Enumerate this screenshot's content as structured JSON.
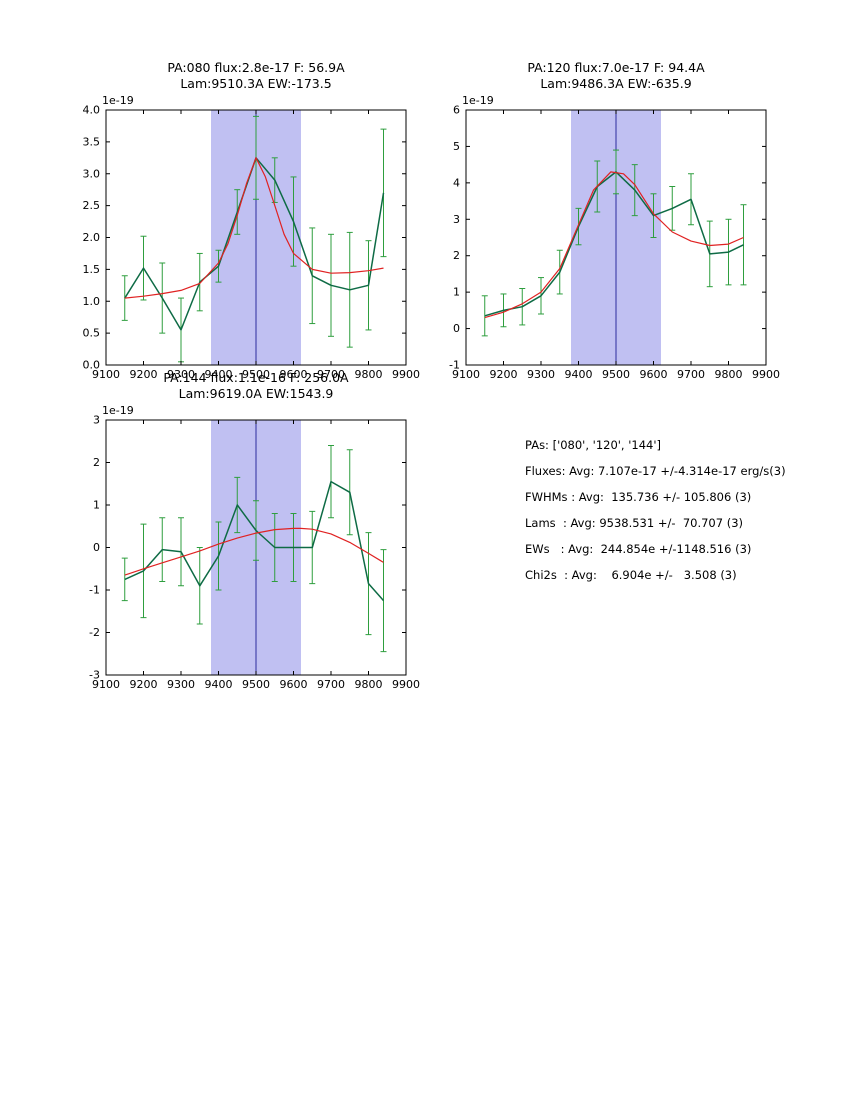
{
  "page": {
    "background": "#ffffff"
  },
  "stats_panel": {
    "lines": [
      "PAs: ['080', '120', '144']",
      "Fluxes: Avg: 7.107e-17 +/-4.314e-17 erg/s(3)",
      "FWHMs : Avg:  135.736 +/- 105.806 (3)",
      "Lams  : Avg: 9538.531 +/-  70.707 (3)",
      "EWs   : Avg:  244.854e +/-1148.516 (3)",
      "Chi2s  : Avg:    6.904e +/-   3.508 (3)"
    ]
  },
  "colors": {
    "data_line": "#0e6b45",
    "error_bar": "#2e9e3e",
    "fit_line": "#e02222",
    "band": "#c0c0f2",
    "vline": "#2b2b9e",
    "axes": "#000000"
  },
  "chart_data": [
    {
      "type": "line",
      "title_line1": "PA:080 flux:2.8e-17 F: 56.9A",
      "title_line2": "Lam:9510.3A EW:-173.5",
      "offset_label": "1e-19",
      "xlim": [
        9100,
        9900
      ],
      "ylim": [
        0.0,
        4.0
      ],
      "xticks": [
        9100,
        9200,
        9300,
        9400,
        9500,
        9600,
        9700,
        9800,
        9900
      ],
      "xtick_labels": [
        "9100",
        "9200",
        "9300",
        "9400",
        "9500",
        "9600",
        "9700",
        "9800",
        "9900"
      ],
      "yticks": [
        0.0,
        0.5,
        1.0,
        1.5,
        2.0,
        2.5,
        3.0,
        3.5,
        4.0
      ],
      "ytick_labels": [
        "0.0",
        "0.5",
        "1.0",
        "1.5",
        "2.0",
        "2.5",
        "3.0",
        "3.5",
        "4.0"
      ],
      "band": {
        "x0": 9380,
        "x1": 9620,
        "color": "#c0c0f2"
      },
      "vline": {
        "x": 9500,
        "color": "#2b2b9e"
      },
      "series": [
        {
          "name": "spectrum-data",
          "color": "#0e6b45",
          "err_color": "#2e9e3e",
          "x": [
            9150,
            9200,
            9250,
            9300,
            9350,
            9400,
            9450,
            9500,
            9550,
            9600,
            9650,
            9700,
            9750,
            9800,
            9840
          ],
          "y": [
            1.05,
            1.52,
            1.05,
            0.55,
            1.3,
            1.55,
            2.4,
            3.25,
            2.9,
            2.25,
            1.4,
            1.25,
            1.18,
            1.25,
            2.7
          ],
          "yerr": [
            0.35,
            0.5,
            0.55,
            0.5,
            0.45,
            0.25,
            0.35,
            0.65,
            0.35,
            0.7,
            0.75,
            0.8,
            0.9,
            0.7,
            1.0
          ]
        },
        {
          "name": "gaussian-fit",
          "color": "#e02222",
          "x": [
            9150,
            9200,
            9250,
            9300,
            9350,
            9400,
            9425,
            9450,
            9475,
            9500,
            9525,
            9550,
            9575,
            9600,
            9650,
            9700,
            9750,
            9800,
            9840
          ],
          "y": [
            1.05,
            1.08,
            1.12,
            1.17,
            1.28,
            1.6,
            1.9,
            2.35,
            2.85,
            3.25,
            2.95,
            2.5,
            2.05,
            1.75,
            1.5,
            1.44,
            1.45,
            1.48,
            1.52
          ]
        }
      ]
    },
    {
      "type": "line",
      "title_line1": "PA:120 flux:7.0e-17 F: 94.4A",
      "title_line2": "Lam:9486.3A EW:-635.9",
      "offset_label": "1e-19",
      "xlim": [
        9100,
        9900
      ],
      "ylim": [
        -1,
        6
      ],
      "xticks": [
        9100,
        9200,
        9300,
        9400,
        9500,
        9600,
        9700,
        9800,
        9900
      ],
      "xtick_labels": [
        "9100",
        "9200",
        "9300",
        "9400",
        "9500",
        "9600",
        "9700",
        "9800",
        "9900"
      ],
      "yticks": [
        -1,
        0,
        1,
        2,
        3,
        4,
        5,
        6
      ],
      "ytick_labels": [
        "-1",
        "0",
        "1",
        "2",
        "3",
        "4",
        "5",
        "6"
      ],
      "band": {
        "x0": 9380,
        "x1": 9620,
        "color": "#c0c0f2"
      },
      "vline": {
        "x": 9500,
        "color": "#2b2b9e"
      },
      "series": [
        {
          "name": "spectrum-data",
          "color": "#0e6b45",
          "err_color": "#2e9e3e",
          "x": [
            9150,
            9200,
            9250,
            9300,
            9350,
            9400,
            9450,
            9500,
            9550,
            9600,
            9650,
            9700,
            9750,
            9800,
            9840
          ],
          "y": [
            0.35,
            0.5,
            0.6,
            0.9,
            1.55,
            2.8,
            3.9,
            4.3,
            3.8,
            3.1,
            3.3,
            3.55,
            2.05,
            2.1,
            2.3
          ],
          "yerr": [
            0.55,
            0.45,
            0.5,
            0.5,
            0.6,
            0.5,
            0.7,
            0.6,
            0.7,
            0.6,
            0.6,
            0.7,
            0.9,
            0.9,
            1.1
          ]
        },
        {
          "name": "gaussian-fit",
          "color": "#e02222",
          "x": [
            9150,
            9200,
            9250,
            9300,
            9350,
            9400,
            9440,
            9486,
            9520,
            9550,
            9600,
            9650,
            9700,
            9750,
            9800,
            9840
          ],
          "y": [
            0.3,
            0.45,
            0.68,
            1.0,
            1.65,
            2.85,
            3.8,
            4.3,
            4.25,
            3.95,
            3.15,
            2.65,
            2.4,
            2.28,
            2.32,
            2.5
          ]
        }
      ]
    },
    {
      "type": "line",
      "title_line1": "PA:144 flux:1.1e-16 F: 256.0A",
      "title_line2": "Lam:9619.0A EW:1543.9",
      "offset_label": "1e-19",
      "xlim": [
        9100,
        9900
      ],
      "ylim": [
        -3,
        3
      ],
      "xticks": [
        9100,
        9200,
        9300,
        9400,
        9500,
        9600,
        9700,
        9800,
        9900
      ],
      "xtick_labels": [
        "9100",
        "9200",
        "9300",
        "9400",
        "9500",
        "9600",
        "9700",
        "9800",
        "9900"
      ],
      "yticks": [
        -3,
        -2,
        -1,
        0,
        1,
        2,
        3
      ],
      "ytick_labels": [
        "-3",
        "-2",
        "-1",
        "0",
        "1",
        "2",
        "3"
      ],
      "band": {
        "x0": 9380,
        "x1": 9620,
        "color": "#c0c0f2"
      },
      "vline": {
        "x": 9500,
        "color": "#2b2b9e"
      },
      "series": [
        {
          "name": "spectrum-data",
          "color": "#0e6b45",
          "err_color": "#2e9e3e",
          "x": [
            9150,
            9200,
            9250,
            9300,
            9350,
            9400,
            9450,
            9500,
            9550,
            9600,
            9650,
            9700,
            9750,
            9800,
            9840
          ],
          "y": [
            -0.75,
            -0.55,
            -0.05,
            -0.1,
            -0.9,
            -0.2,
            1.0,
            0.4,
            0.0,
            0.0,
            0.0,
            1.55,
            1.3,
            -0.85,
            -1.25
          ],
          "yerr": [
            0.5,
            1.1,
            0.75,
            0.8,
            0.9,
            0.8,
            0.65,
            0.7,
            0.8,
            0.8,
            0.85,
            0.85,
            1.0,
            1.2,
            1.2
          ]
        },
        {
          "name": "gaussian-fit",
          "color": "#e02222",
          "x": [
            9150,
            9200,
            9250,
            9300,
            9350,
            9400,
            9450,
            9500,
            9550,
            9600,
            9619,
            9650,
            9700,
            9750,
            9800,
            9840
          ],
          "y": [
            -0.65,
            -0.5,
            -0.36,
            -0.22,
            -0.08,
            0.08,
            0.22,
            0.34,
            0.42,
            0.45,
            0.45,
            0.43,
            0.32,
            0.12,
            -0.14,
            -0.35
          ]
        }
      ]
    }
  ]
}
